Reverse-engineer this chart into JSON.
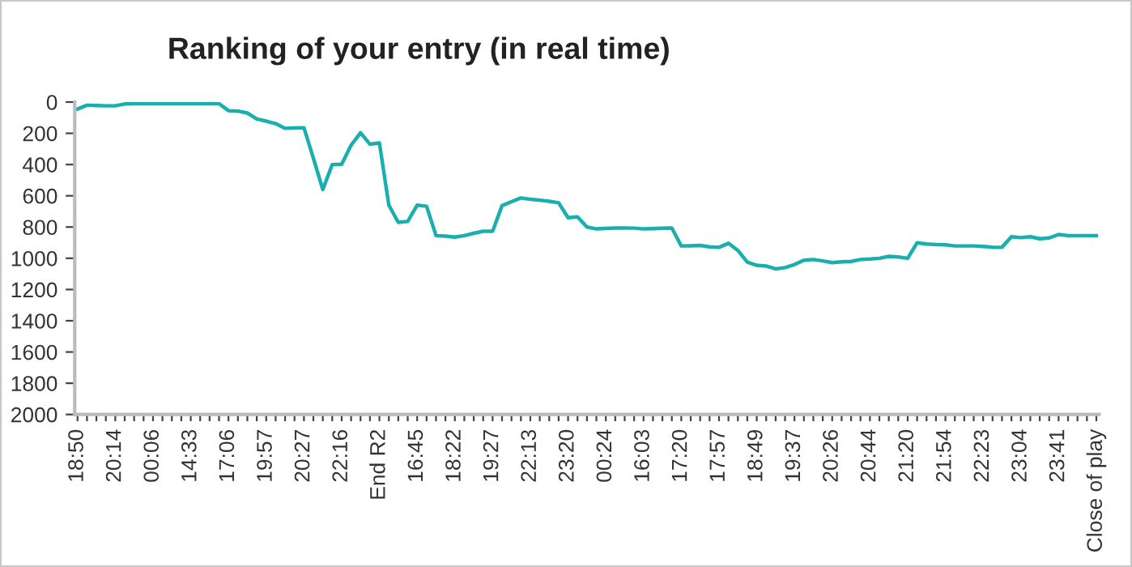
{
  "chart_data": {
    "type": "line",
    "title": "Ranking of your entry (in real time)",
    "categories": [
      "18:50",
      null,
      null,
      null,
      "20:14",
      null,
      null,
      null,
      "00:06",
      null,
      null,
      null,
      "14:33",
      null,
      null,
      null,
      "17:06",
      null,
      null,
      null,
      "19:57",
      null,
      null,
      null,
      "20:27",
      null,
      null,
      null,
      "22:16",
      null,
      null,
      null,
      "End R2",
      null,
      null,
      null,
      "16:45",
      null,
      null,
      null,
      "18:22",
      null,
      null,
      null,
      "19:27",
      null,
      null,
      null,
      "22:13",
      null,
      null,
      null,
      "23:20",
      null,
      null,
      null,
      "00:24",
      null,
      null,
      null,
      "16:03",
      null,
      null,
      null,
      "17:20",
      null,
      null,
      null,
      "17:57",
      null,
      null,
      null,
      "18:49",
      null,
      null,
      null,
      "19:37",
      null,
      null,
      null,
      "20:26",
      null,
      null,
      null,
      "20:44",
      null,
      null,
      null,
      "21:20",
      null,
      null,
      null,
      "21:54",
      null,
      null,
      null,
      "22:23",
      null,
      null,
      null,
      "23:04",
      null,
      null,
      null,
      "23:41",
      null,
      null,
      null,
      "Close of play"
    ],
    "series": [
      {
        "color": "#1aafaf",
        "values": [
          45,
          20,
          22,
          24,
          24,
          12,
          10,
          10,
          10,
          10,
          10,
          10,
          10,
          10,
          10,
          10,
          55,
          58,
          70,
          108,
          122,
          138,
          168,
          166,
          164,
          360,
          560,
          400,
          398,
          276,
          196,
          270,
          262,
          660,
          770,
          764,
          660,
          667,
          855,
          858,
          865,
          855,
          840,
          827,
          827,
          663,
          638,
          614,
          622,
          628,
          635,
          645,
          740,
          735,
          800,
          812,
          809,
          806,
          806,
          807,
          812,
          810,
          808,
          806,
          921,
          920,
          918,
          927,
          930,
          904,
          950,
          1025,
          1045,
          1050,
          1068,
          1060,
          1040,
          1012,
          1008,
          1017,
          1028,
          1023,
          1020,
          1008,
          1005,
          1000,
          988,
          992,
          1000,
          901,
          909,
          912,
          914,
          921,
          921,
          921,
          924,
          929,
          930,
          862,
          868,
          862,
          875,
          870,
          848,
          855,
          855,
          855,
          855
        ]
      }
    ],
    "ylim": [
      2000,
      0
    ],
    "yticks": [
      0,
      200,
      400,
      600,
      800,
      1000,
      1200,
      1400,
      1600,
      1800,
      2000
    ],
    "grid": false,
    "marker": "none",
    "line_style": "solid"
  }
}
